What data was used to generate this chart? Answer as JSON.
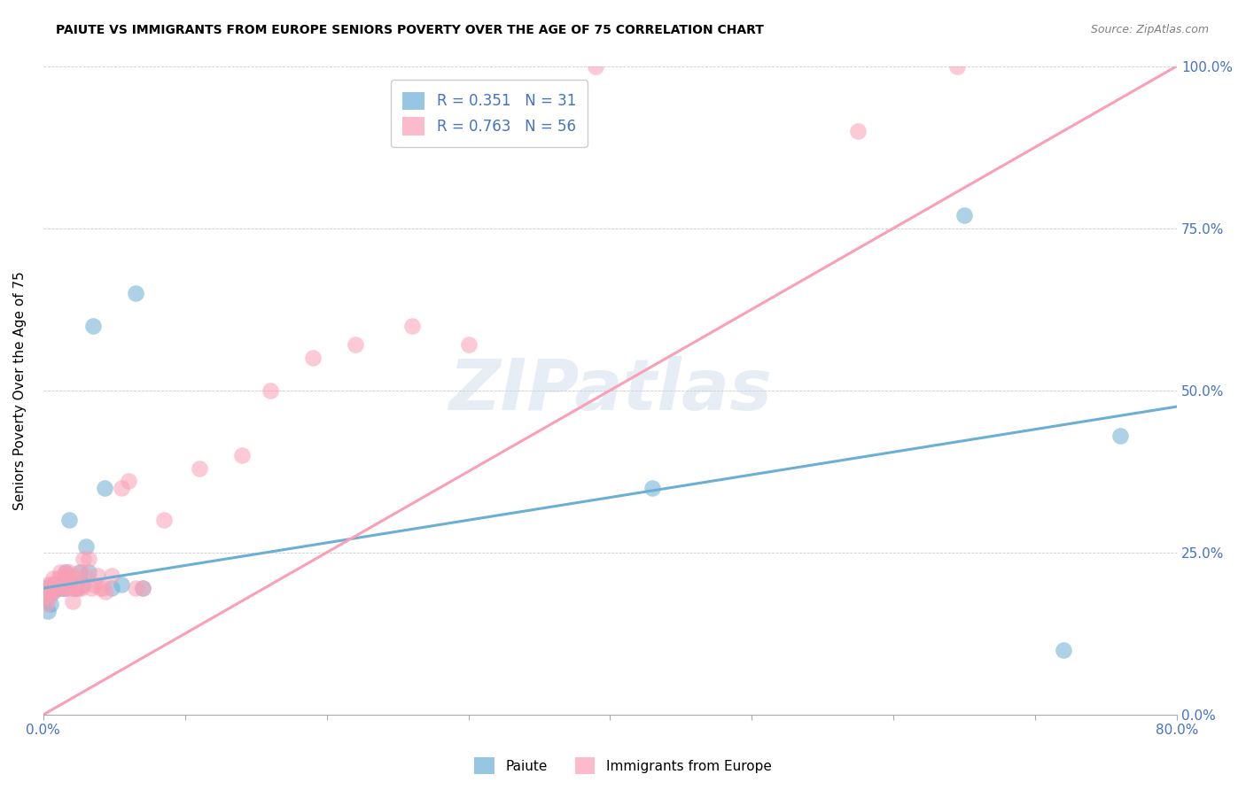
{
  "title": "PAIUTE VS IMMIGRANTS FROM EUROPE SENIORS POVERTY OVER THE AGE OF 75 CORRELATION CHART",
  "source": "Source: ZipAtlas.com",
  "ylabel": "Seniors Poverty Over the Age of 75",
  "ytick_labels": [
    "0.0%",
    "25.0%",
    "50.0%",
    "75.0%",
    "100.0%"
  ],
  "ytick_values": [
    0,
    25,
    50,
    75,
    100
  ],
  "xtick_labels": [
    "0.0%",
    "",
    "",
    "",
    "",
    "",
    "",
    "",
    "80.0%"
  ],
  "xtick_values": [
    0,
    10,
    20,
    30,
    40,
    50,
    60,
    70,
    80
  ],
  "xlim": [
    0,
    80
  ],
  "ylim": [
    0,
    100
  ],
  "watermark": "ZIPatlas",
  "legend_label1": "Paiute",
  "legend_label2": "Immigrants from Europe",
  "r1": "0.351",
  "n1": "31",
  "r2": "0.763",
  "n2": "56",
  "color1": "#6baed6",
  "color2": "#fa9fb5",
  "trendline1_x": [
    0,
    80
  ],
  "trendline1_y": [
    19.5,
    47.5
  ],
  "trendline2_x": [
    0,
    80
  ],
  "trendline2_y": [
    0,
    100
  ],
  "paiute_x": [
    0.1,
    0.2,
    0.3,
    0.4,
    0.5,
    0.6,
    0.7,
    0.8,
    1.0,
    1.2,
    1.3,
    1.5,
    1.6,
    1.8,
    2.0,
    2.2,
    2.4,
    2.6,
    2.8,
    3.0,
    3.2,
    3.5,
    4.3,
    4.8,
    5.5,
    6.5,
    7.0,
    43.0,
    65.0,
    72.0,
    76.0
  ],
  "paiute_y": [
    19.5,
    18.0,
    16.0,
    19.5,
    17.0,
    19.5,
    19.0,
    20.0,
    19.5,
    20.0,
    19.5,
    19.5,
    22.0,
    30.0,
    20.0,
    19.5,
    19.5,
    22.0,
    20.0,
    26.0,
    22.0,
    60.0,
    35.0,
    19.5,
    20.0,
    65.0,
    19.5,
    35.0,
    77.0,
    10.0,
    43.0
  ],
  "europe_x": [
    0.1,
    0.2,
    0.2,
    0.3,
    0.3,
    0.4,
    0.4,
    0.5,
    0.6,
    0.6,
    0.7,
    0.8,
    0.9,
    1.0,
    1.1,
    1.2,
    1.3,
    1.4,
    1.5,
    1.6,
    1.7,
    1.8,
    1.9,
    2.0,
    2.1,
    2.2,
    2.3,
    2.4,
    2.5,
    2.6,
    2.7,
    2.8,
    3.0,
    3.2,
    3.4,
    3.6,
    3.8,
    4.0,
    4.2,
    4.4,
    4.8,
    5.5,
    6.0,
    6.5,
    7.0,
    8.5,
    11.0,
    14.0,
    16.0,
    19.0,
    22.0,
    26.0,
    30.0,
    39.0,
    57.5,
    64.5
  ],
  "europe_y": [
    18.0,
    19.5,
    17.0,
    20.0,
    19.0,
    18.0,
    19.5,
    19.5,
    20.0,
    19.0,
    21.0,
    19.5,
    19.5,
    19.5,
    21.0,
    22.0,
    21.0,
    19.5,
    19.5,
    22.0,
    21.5,
    22.0,
    19.5,
    20.0,
    17.5,
    19.5,
    19.5,
    21.0,
    19.5,
    22.0,
    19.5,
    24.0,
    21.5,
    24.0,
    19.5,
    20.0,
    21.5,
    19.5,
    19.5,
    19.0,
    21.5,
    35.0,
    36.0,
    19.5,
    19.5,
    30.0,
    38.0,
    40.0,
    50.0,
    55.0,
    57.0,
    60.0,
    57.0,
    100.0,
    90.0,
    100.0
  ]
}
